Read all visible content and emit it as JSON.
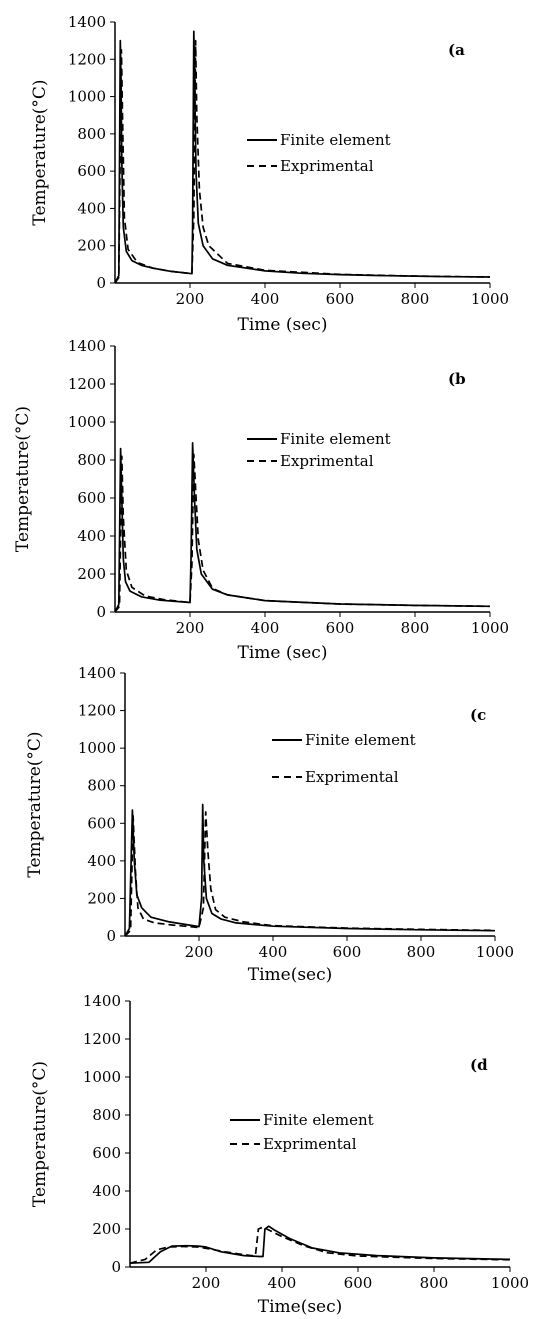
{
  "chart_data": [
    {
      "type": "line",
      "panel_label": "(a",
      "xlabel": "Time (sec)",
      "ylabel": "Temperature(°C)",
      "xlim": [
        0,
        1000
      ],
      "ylim": [
        0,
        1400
      ],
      "xticks": [
        200,
        400,
        600,
        800,
        1000
      ],
      "yticks": [
        0,
        200,
        400,
        600,
        800,
        1000,
        1200,
        1400
      ],
      "legend_position": "center-right",
      "series": [
        {
          "name": "Finite element",
          "style": "solid",
          "x": [
            0,
            10,
            14,
            16,
            18,
            22,
            30,
            45,
            70,
            100,
            150,
            205,
            207,
            210,
            213,
            216,
            222,
            235,
            260,
            300,
            400,
            500,
            600,
            700,
            800,
            900,
            1000
          ],
          "y": [
            0,
            40,
            1300,
            1100,
            650,
            300,
            170,
            120,
            95,
            80,
            62,
            50,
            300,
            1350,
            1000,
            600,
            320,
            200,
            130,
            95,
            65,
            52,
            45,
            40,
            37,
            34,
            32
          ]
        },
        {
          "name": "Exprimental",
          "style": "dashed",
          "x": [
            0,
            10,
            17,
            20,
            25,
            35,
            60,
            100,
            150,
            205,
            210,
            215,
            218,
            225,
            235,
            250,
            300,
            400,
            600,
            800,
            1000
          ],
          "y": [
            0,
            30,
            1250,
            900,
            350,
            180,
            110,
            80,
            62,
            50,
            350,
            1300,
            900,
            500,
            300,
            200,
            105,
            68,
            46,
            37,
            32
          ]
        }
      ]
    },
    {
      "type": "line",
      "panel_label": "(b",
      "xlabel": "Time (sec)",
      "ylabel": "Temperature(°C)",
      "xlim": [
        0,
        1000
      ],
      "ylim": [
        0,
        1400
      ],
      "xticks": [
        200,
        400,
        600,
        800,
        1000
      ],
      "yticks": [
        0,
        200,
        400,
        600,
        800,
        1000,
        1200,
        1400
      ],
      "legend_position": "center-right",
      "series": [
        {
          "name": "Finite element",
          "style": "solid",
          "x": [
            0,
            10,
            15,
            18,
            22,
            28,
            40,
            70,
            120,
            200,
            203,
            207,
            212,
            218,
            230,
            260,
            300,
            400,
            600,
            800,
            1000
          ],
          "y": [
            0,
            40,
            860,
            600,
            280,
            160,
            110,
            80,
            62,
            50,
            300,
            890,
            600,
            330,
            200,
            120,
            90,
            60,
            42,
            35,
            30
          ]
        },
        {
          "name": "Exprimental",
          "style": "dashed",
          "x": [
            0,
            12,
            18,
            22,
            30,
            45,
            80,
            130,
            200,
            205,
            210,
            215,
            222,
            235,
            260,
            300,
            400,
            600,
            800,
            1000
          ],
          "y": [
            0,
            30,
            820,
            500,
            220,
            130,
            85,
            65,
            50,
            250,
            830,
            650,
            380,
            220,
            125,
            90,
            60,
            42,
            35,
            30
          ]
        }
      ]
    },
    {
      "type": "line",
      "panel_label": "(c",
      "xlabel": "Time(sec)",
      "ylabel": "Temperature(°C)",
      "xlim": [
        0,
        1000
      ],
      "ylim": [
        0,
        1400
      ],
      "xticks": [
        200,
        400,
        600,
        800,
        1000
      ],
      "yticks": [
        0,
        200,
        400,
        600,
        800,
        1000,
        1200,
        1400
      ],
      "legend_position": "center-right",
      "series": [
        {
          "name": "Finite element",
          "style": "solid",
          "x": [
            0,
            12,
            20,
            25,
            32,
            45,
            70,
            120,
            200,
            207,
            210,
            213,
            220,
            235,
            260,
            300,
            400,
            600,
            800,
            1000
          ],
          "y": [
            0,
            40,
            670,
            400,
            220,
            150,
            100,
            75,
            50,
            200,
            700,
            400,
            200,
            120,
            90,
            70,
            52,
            40,
            33,
            28
          ]
        },
        {
          "name": "Exprimental",
          "style": "dashed",
          "x": [
            0,
            15,
            22,
            28,
            35,
            50,
            80,
            130,
            200,
            212,
            218,
            224,
            232,
            245,
            270,
            320,
            400,
            600,
            800,
            1000
          ],
          "y": [
            0,
            30,
            640,
            350,
            150,
            90,
            70,
            58,
            45,
            150,
            660,
            450,
            250,
            140,
            100,
            75,
            55,
            42,
            35,
            30
          ]
        }
      ]
    },
    {
      "type": "line",
      "panel_label": "(d",
      "xlabel": "Time(sec)",
      "ylabel": "Temperature(°C)",
      "xlim": [
        0,
        1000
      ],
      "ylim": [
        0,
        1400
      ],
      "xticks": [
        200,
        400,
        600,
        800,
        1000
      ],
      "yticks": [
        0,
        200,
        400,
        600,
        800,
        1000,
        1200,
        1400
      ],
      "legend_position": "center-right",
      "series": [
        {
          "name": "Finite element",
          "style": "solid",
          "x": [
            0,
            50,
            80,
            110,
            150,
            180,
            200,
            240,
            300,
            340,
            350,
            355,
            365,
            380,
            420,
            480,
            550,
            650,
            800,
            1000
          ],
          "y": [
            20,
            25,
            80,
            110,
            112,
            110,
            105,
            80,
            60,
            55,
            55,
            200,
            215,
            195,
            150,
            100,
            75,
            60,
            48,
            40
          ]
        },
        {
          "name": "Exprimental",
          "style": "dashed",
          "x": [
            0,
            40,
            70,
            100,
            140,
            180,
            210,
            250,
            300,
            320,
            330,
            338,
            350,
            365,
            400,
            460,
            520,
            600,
            800,
            1000
          ],
          "y": [
            20,
            40,
            90,
            105,
            108,
            105,
            95,
            80,
            65,
            60,
            60,
            200,
            210,
            195,
            160,
            110,
            75,
            58,
            45,
            38
          ]
        }
      ]
    }
  ]
}
